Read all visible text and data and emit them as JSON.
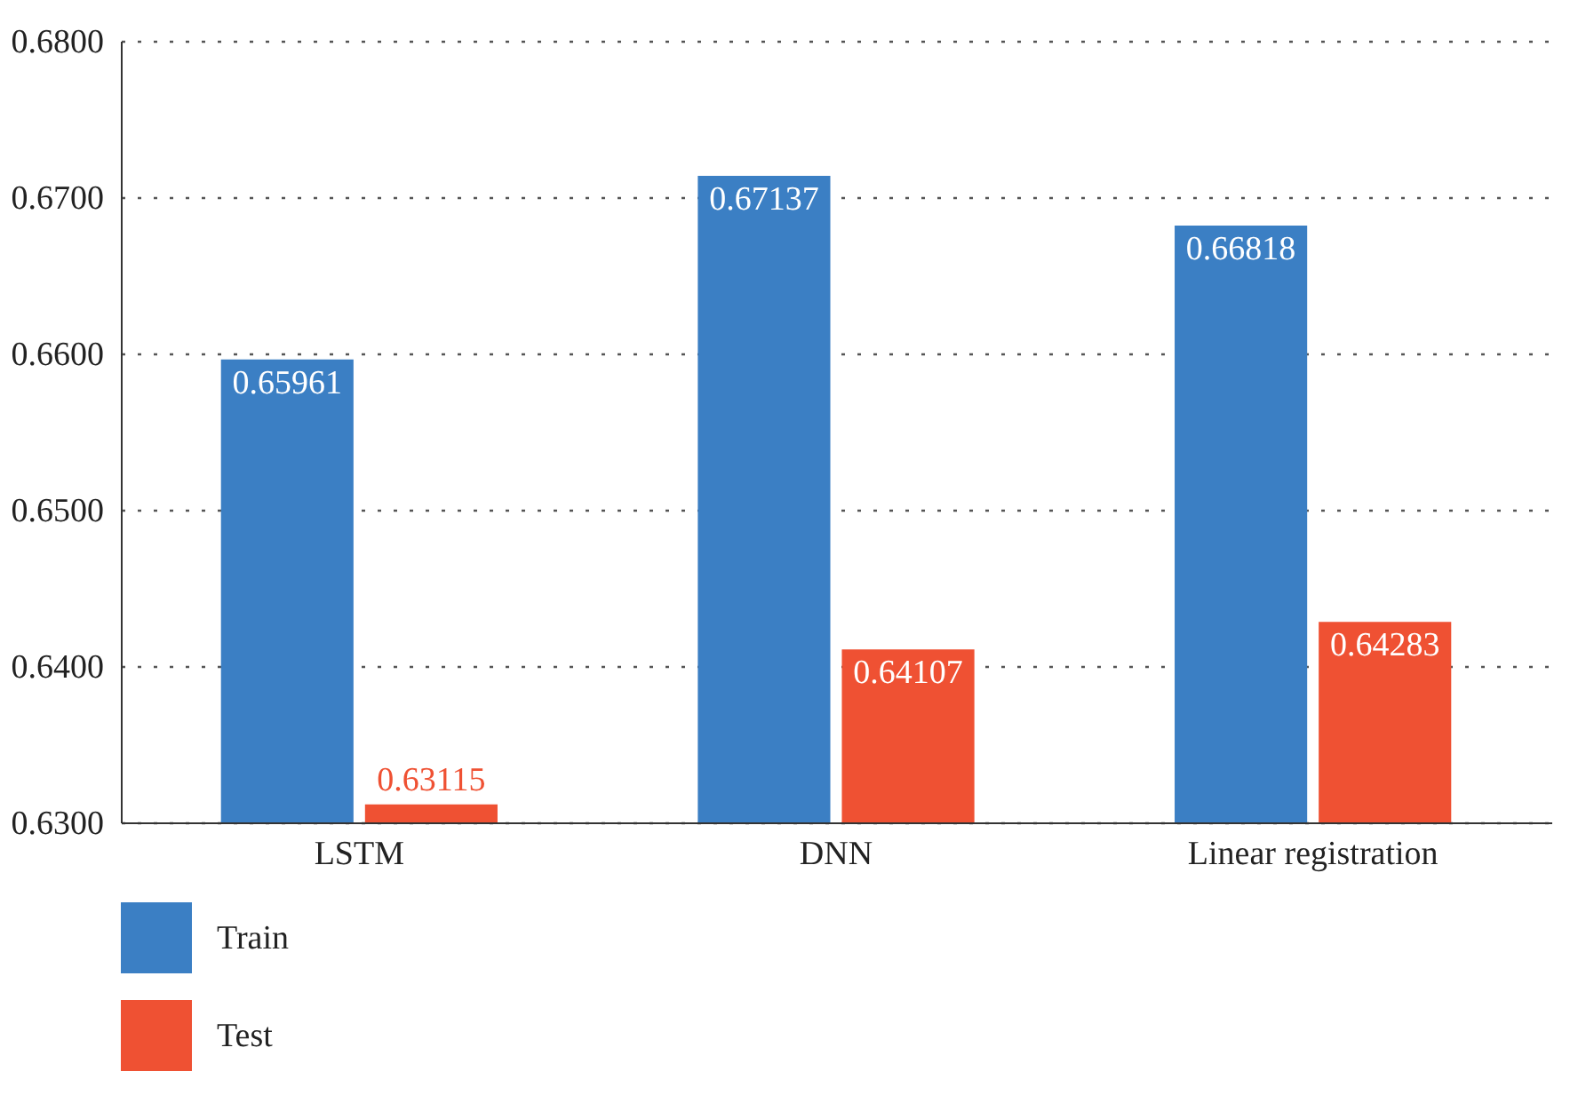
{
  "chart_data": {
    "type": "bar",
    "categories": [
      "LSTM",
      "DNN",
      "Linear registration"
    ],
    "series": [
      {
        "name": "Train",
        "color": "#3b7fc4",
        "values": [
          0.65961,
          0.67137,
          0.66818
        ]
      },
      {
        "name": "Test",
        "color": "#ef5133",
        "values": [
          0.63115,
          0.64107,
          0.64283
        ]
      }
    ],
    "ylim": [
      0.63,
      0.68
    ],
    "yticks": [
      {
        "value": 0.63,
        "label": "0.6300"
      },
      {
        "value": 0.64,
        "label": "0.6400"
      },
      {
        "value": 0.65,
        "label": "0.6500"
      },
      {
        "value": 0.66,
        "label": "0.6600"
      },
      {
        "value": 0.67,
        "label": "0.6700"
      },
      {
        "value": 0.68,
        "label": "0.6800"
      }
    ],
    "grid": "y",
    "legend": "bottom left",
    "data_labels": true
  }
}
